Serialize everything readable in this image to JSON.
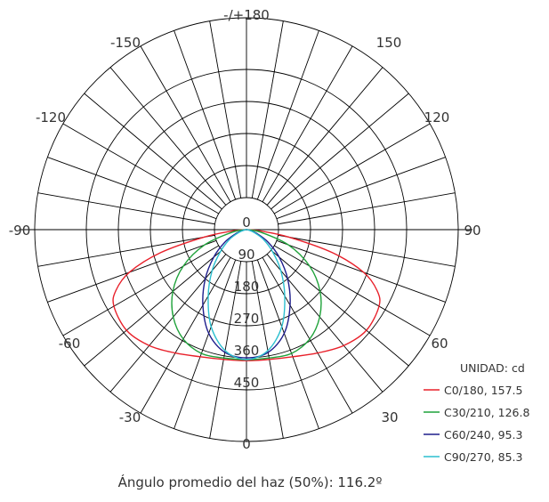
{
  "chart_data": {
    "type": "polar",
    "angle_labels": [
      "-/+180",
      "150",
      "120",
      "90",
      "60",
      "30",
      "0",
      "-30",
      "-60",
      "-90",
      "-120",
      "-150"
    ],
    "radial_ticks": [
      0,
      90,
      180,
      270,
      360,
      450
    ],
    "radial_labels": [
      "0",
      "90",
      "180",
      "270",
      "360",
      "450"
    ],
    "rmax": 450,
    "legend_title": "UNIDAD: cd",
    "series": [
      {
        "name": "C0/180, 157.5",
        "color": "#e8202a",
        "angles": [
          0,
          10,
          20,
          30,
          40,
          50,
          60,
          65,
          70,
          75,
          80,
          85,
          90
        ],
        "values": [
          368,
          370,
          380,
          400,
          425,
          440,
          430,
          405,
          350,
          250,
          120,
          35,
          0
        ]
      },
      {
        "name": "C30/210, 126.8",
        "color": "#1fa23a",
        "angles": [
          0,
          10,
          20,
          30,
          40,
          50,
          60,
          70,
          80,
          90
        ],
        "values": [
          365,
          366,
          370,
          355,
          320,
          270,
          205,
          125,
          40,
          0
        ]
      },
      {
        "name": "C60/240, 95.3",
        "color": "#1e1e8c",
        "angles": [
          0,
          10,
          20,
          30,
          40,
          50,
          60,
          70,
          80,
          90
        ],
        "values": [
          360,
          350,
          310,
          245,
          180,
          120,
          70,
          30,
          8,
          0
        ]
      },
      {
        "name": "C90/270, 85.3",
        "color": "#2bbfcf",
        "angles": [
          0,
          10,
          20,
          30,
          40,
          50,
          60,
          70,
          80,
          90
        ],
        "values": [
          365,
          345,
          290,
          215,
          150,
          95,
          55,
          22,
          5,
          0
        ]
      }
    ],
    "footer": "Ángulo promedio del haz (50%): 116.2º",
    "grid": true
  }
}
